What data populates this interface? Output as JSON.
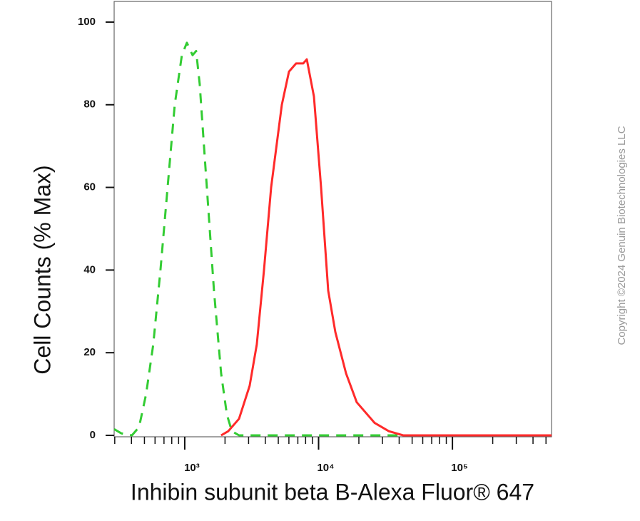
{
  "chart_data": {
    "type": "line",
    "y_label": "Cell Counts (% Max)",
    "x_label": "Inhibin subunit beta B-Alexa Fluor® 647",
    "copyright": "Copyright ©2024 Genuin Biotechnologies LLC",
    "x_log_scale": true,
    "xlim": [
      297,
      550000
    ],
    "xticks": [
      {
        "value": 1000,
        "label": "10³"
      },
      {
        "value": 10000,
        "label": "10⁴"
      },
      {
        "value": 100000,
        "label": "10⁵"
      }
    ],
    "xminorticks": [
      300,
      400,
      500,
      600,
      700,
      800,
      900,
      2000,
      3000,
      4000,
      5000,
      6000,
      7000,
      8000,
      9000,
      20000,
      30000,
      40000,
      50000,
      60000,
      70000,
      80000,
      90000,
      200000,
      300000,
      400000,
      500000
    ],
    "ylim": [
      0,
      105
    ],
    "yticks": [
      0,
      20,
      40,
      60,
      80,
      100
    ],
    "series": [
      {
        "color": "#33cc33",
        "dashed": true,
        "x": [
          297,
          335,
          403,
          456,
          515,
          582,
          659,
          745,
          842,
          952,
          1038,
          1145,
          1217,
          1294,
          1463,
          1654,
          1870,
          2065,
          2250,
          2543,
          550000
        ],
        "values": [
          1.5,
          0.5,
          0,
          2,
          10,
          22,
          40,
          60,
          80,
          92,
          95,
          92,
          93,
          85,
          60,
          35,
          15,
          5,
          1,
          0,
          0
        ]
      },
      {
        "color": "#ff2a2a",
        "dashed": false,
        "x": [
          1870,
          2115,
          2543,
          3055,
          3456,
          3908,
          4419,
          5311,
          6007,
          6793,
          7680,
          8163,
          9230,
          10440,
          11800,
          13340,
          16040,
          19280,
          21820,
          26230,
          33510,
          42850,
          550000
        ],
        "values": [
          0,
          1,
          4,
          12,
          22,
          40,
          60,
          80,
          88,
          90,
          90,
          91,
          82,
          60,
          35,
          25,
          15,
          8,
          6,
          3,
          1,
          0,
          0
        ]
      }
    ]
  }
}
